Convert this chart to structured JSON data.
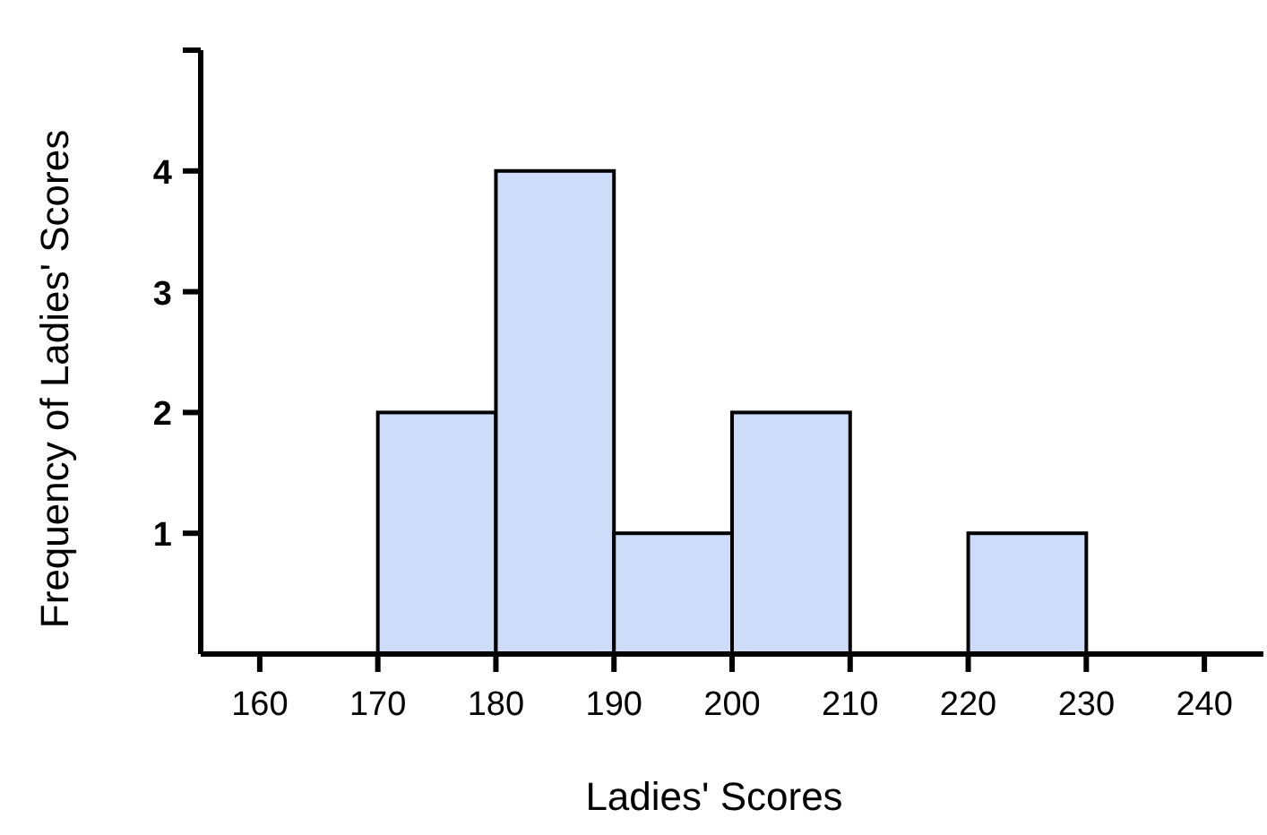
{
  "chart_data": {
    "type": "histogram",
    "xlabel": "Ladies' Scores",
    "ylabel": "Frequency of Ladies' Scores",
    "bins": [
      170,
      180,
      190,
      200,
      210,
      220,
      230
    ],
    "values": [
      2,
      4,
      1,
      2,
      0,
      1
    ],
    "color": "#cddcf8",
    "xlim": [
      155,
      245
    ],
    "xticks": [
      160,
      170,
      180,
      190,
      200,
      210,
      220,
      230,
      240
    ],
    "ylim": [
      0,
      5
    ],
    "yticks": [
      1,
      2,
      3,
      4,
      {
        "value": 5,
        "label": null
      }
    ],
    "tick_labels": "xy"
  }
}
